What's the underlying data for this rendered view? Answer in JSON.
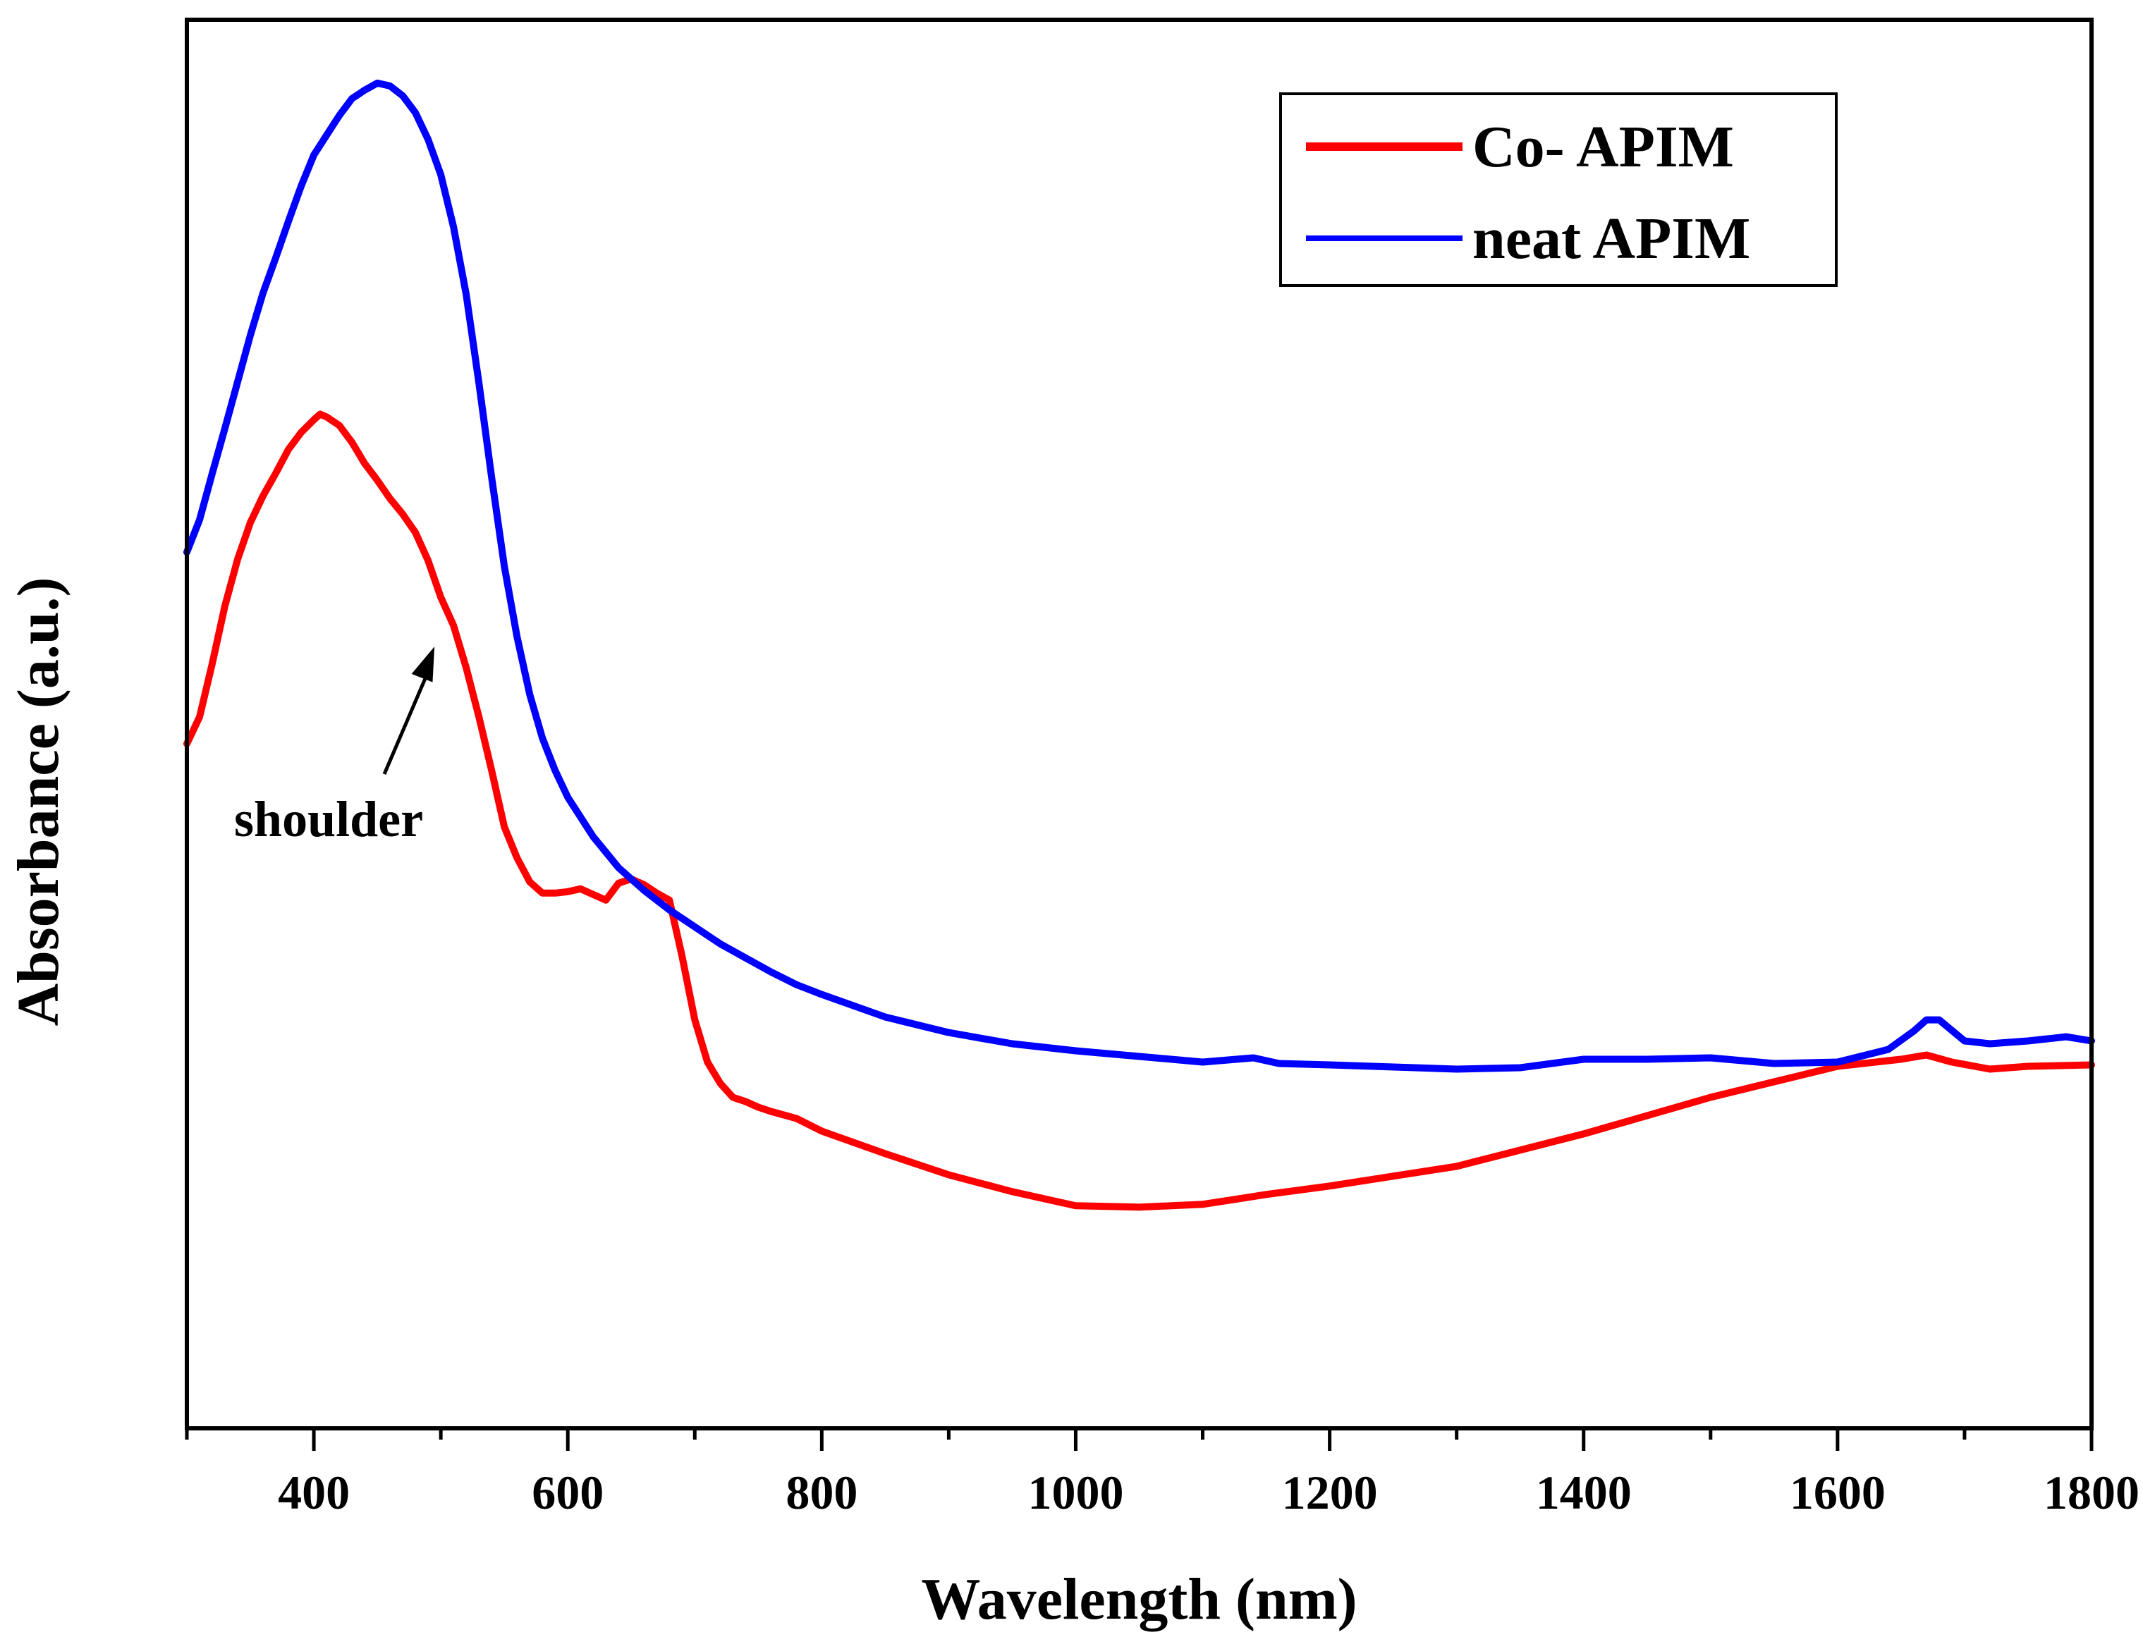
{
  "chart_data": {
    "type": "line",
    "title": "",
    "xlabel": "Wavelength (nm)",
    "ylabel": "Absorbance (a.u.)",
    "xlim": [
      300,
      1800
    ],
    "ylim": [
      0,
      1.0
    ],
    "xticks": [
      400,
      600,
      800,
      1000,
      1200,
      1400,
      1600,
      1800
    ],
    "xtick_labels": [
      "400",
      "600",
      "800",
      "1000",
      "1200",
      "1400",
      "1600",
      "1800"
    ],
    "show_y_tick_labels": false,
    "grid": false,
    "legend_position": "top-right",
    "series": [
      {
        "name": "Co- APIM",
        "color": "#ff0000",
        "x": [
          300,
          310,
          320,
          330,
          340,
          350,
          360,
          370,
          380,
          390,
          400,
          405,
          410,
          420,
          430,
          440,
          450,
          460,
          470,
          480,
          490,
          500,
          510,
          520,
          530,
          540,
          550,
          560,
          570,
          580,
          590,
          600,
          610,
          620,
          630,
          640,
          650,
          660,
          670,
          680,
          690,
          700,
          710,
          720,
          730,
          740,
          750,
          760,
          780,
          800,
          850,
          900,
          950,
          1000,
          1050,
          1100,
          1150,
          1200,
          1300,
          1400,
          1500,
          1600,
          1650,
          1670,
          1690,
          1720,
          1750,
          1800
        ],
        "y": [
          0.486,
          0.505,
          0.543,
          0.584,
          0.617,
          0.643,
          0.662,
          0.678,
          0.695,
          0.707,
          0.716,
          0.72,
          0.718,
          0.712,
          0.7,
          0.685,
          0.673,
          0.66,
          0.649,
          0.636,
          0.616,
          0.59,
          0.57,
          0.54,
          0.505,
          0.467,
          0.427,
          0.405,
          0.388,
          0.38,
          0.38,
          0.381,
          0.383,
          0.379,
          0.375,
          0.387,
          0.39,
          0.386,
          0.38,
          0.375,
          0.335,
          0.29,
          0.26,
          0.245,
          0.235,
          0.232,
          0.228,
          0.225,
          0.22,
          0.211,
          0.195,
          0.18,
          0.168,
          0.158,
          0.157,
          0.159,
          0.166,
          0.172,
          0.186,
          0.209,
          0.235,
          0.257,
          0.262,
          0.265,
          0.26,
          0.255,
          0.257,
          0.258
        ]
      },
      {
        "name": "neat APIM",
        "color": "#0000ff",
        "x": [
          300,
          310,
          320,
          330,
          340,
          350,
          360,
          370,
          380,
          390,
          400,
          410,
          420,
          430,
          440,
          450,
          460,
          470,
          480,
          490,
          500,
          510,
          520,
          530,
          540,
          550,
          560,
          570,
          580,
          590,
          600,
          620,
          640,
          660,
          680,
          700,
          720,
          740,
          760,
          780,
          800,
          850,
          900,
          950,
          1000,
          1050,
          1100,
          1140,
          1160,
          1200,
          1300,
          1350,
          1400,
          1450,
          1500,
          1550,
          1600,
          1640,
          1660,
          1670,
          1680,
          1700,
          1720,
          1750,
          1780,
          1800
        ],
        "y": [
          0.622,
          0.645,
          0.678,
          0.71,
          0.743,
          0.776,
          0.806,
          0.831,
          0.857,
          0.882,
          0.904,
          0.918,
          0.932,
          0.944,
          0.95,
          0.955,
          0.953,
          0.946,
          0.934,
          0.915,
          0.89,
          0.853,
          0.805,
          0.742,
          0.675,
          0.612,
          0.562,
          0.521,
          0.49,
          0.467,
          0.448,
          0.42,
          0.398,
          0.382,
          0.368,
          0.356,
          0.344,
          0.334,
          0.324,
          0.315,
          0.308,
          0.292,
          0.281,
          0.273,
          0.268,
          0.264,
          0.26,
          0.263,
          0.259,
          0.258,
          0.255,
          0.256,
          0.262,
          0.262,
          0.263,
          0.259,
          0.26,
          0.269,
          0.282,
          0.29,
          0.29,
          0.275,
          0.273,
          0.275,
          0.278,
          0.275
        ]
      }
    ],
    "annotations": [
      {
        "text": "shoulder",
        "target_x": 495,
        "target_y": 0.555
      }
    ]
  }
}
